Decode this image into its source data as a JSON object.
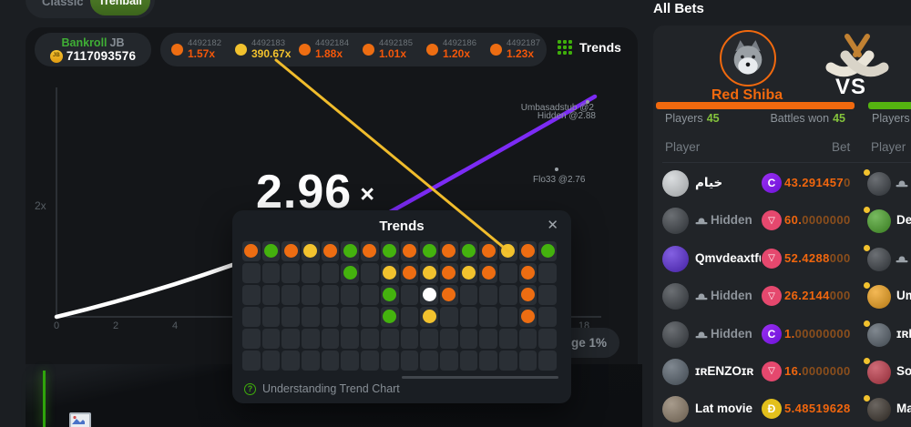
{
  "colors": {
    "page_bg": "#1b1e22",
    "panel_bg": "#141619",
    "card_bg": "#212428",
    "orange": "#ed6d12",
    "green": "#44b20e",
    "yellow": "#f2c22e",
    "white_dot": "#ffffff",
    "brand_orange": "#f1690e",
    "purple_line": "#7c2bf5",
    "value_orange": "#f4570a",
    "value_dim": "#8a4e1c",
    "green_text": "#84c33c",
    "trx_coin": "#e5486e",
    "ctc_coin": "#8a1fe8",
    "doge_coin": "#e3c01c"
  },
  "tabs": {
    "classic": "Classic",
    "trenball": "Trenball"
  },
  "bankroll": {
    "label": "Bankroll",
    "suffix": "JB",
    "coin": "JB",
    "amount": "7117093576"
  },
  "history": {
    "rounds": [
      {
        "id": "4492182",
        "value": "1.57x",
        "color": "orange"
      },
      {
        "id": "4492183",
        "value": "390.67x",
        "color": "yellow"
      },
      {
        "id": "4492184",
        "value": "1.88x",
        "color": "orange"
      },
      {
        "id": "4492185",
        "value": "1.01x",
        "color": "orange"
      },
      {
        "id": "4492186",
        "value": "1.20x",
        "color": "orange"
      },
      {
        "id": "4492187",
        "value": "1.23x",
        "color": "orange"
      }
    ]
  },
  "trends_button": {
    "label": "Trends"
  },
  "chart": {
    "multiplier": "2.96",
    "times_sign": "×",
    "y_label": "2x",
    "x_ticks": [
      "0",
      "2",
      "4",
      "18"
    ],
    "markers": [
      {
        "text": "Umbasadstub @2"
      },
      {
        "text": "Hidden @2.88"
      },
      {
        "text": "Flo33 @2.76"
      }
    ],
    "edge_pill": "dge 1%"
  },
  "trends_modal": {
    "title": "Trends",
    "close": "✕",
    "help": "Understanding Trend Chart",
    "grid": {
      "cols": 16,
      "rows": 6,
      "legend": {
        "O": "orange",
        "G": "green",
        "Y": "yellow",
        "W": "white",
        "-": "empty"
      },
      "cells": [
        "OGOYOGOGOGOGOYOG",
        "-----G-YOYOYO-O-",
        "-------G-WO---O-",
        "-------G-Y----O-",
        "----------------",
        "----------------"
      ]
    }
  },
  "all_bets": {
    "title": "All Bets",
    "team_left": {
      "name": "Red Shiba",
      "players_label": "Players",
      "players": "45",
      "battles_label": "Battles won",
      "battles": "45"
    },
    "vs": "VS",
    "team_right": {
      "players_label": "Players"
    },
    "headers": {
      "player": "Player",
      "bet": "Bet",
      "player2": "Player"
    },
    "rows": [
      {
        "name": "خيام",
        "hidden": false,
        "avatar": "#cfd3d6",
        "coin": "ctc",
        "bright": "43.291457",
        "dimmed": "0"
      },
      {
        "name": "Hidden",
        "hidden": true,
        "avatar": "#3a3f45",
        "coin": "trx",
        "bright": "60.",
        "dimmed": "0000000"
      },
      {
        "name": "Qmvdeaxtful",
        "hidden": false,
        "avatar": "#5a2bd8",
        "coin": "trx",
        "bright": "52.4288",
        "dimmed": "000"
      },
      {
        "name": "Hidden",
        "hidden": true,
        "avatar": "#3a3f45",
        "coin": "trx",
        "bright": "26.2144",
        "dimmed": "000"
      },
      {
        "name": "Hidden",
        "hidden": true,
        "avatar": "#3a3f45",
        "coin": "ctc",
        "bright": "1.",
        "dimmed": "00000000"
      },
      {
        "name": "ɪʀENZOɪʀ",
        "hidden": false,
        "avatar": "#55606b",
        "coin": "trx",
        "bright": "16.",
        "dimmed": "0000000"
      },
      {
        "name": "Lat movie",
        "hidden": false,
        "avatar": "#8a7a66",
        "coin": "doge",
        "bright": "5.48519628",
        "dimmed": ""
      }
    ],
    "right_rows": [
      {
        "name": "H",
        "hidden": true,
        "avatar": "#3a3f45"
      },
      {
        "name": "Dev",
        "hidden": false,
        "avatar": "#4aa32a"
      },
      {
        "name": "H",
        "hidden": true,
        "avatar": "#3a3f45"
      },
      {
        "name": "Um",
        "hidden": false,
        "avatar": "#f0a11c"
      },
      {
        "name": "ɪʀEN",
        "hidden": false,
        "avatar": "#56606a"
      },
      {
        "name": "Soh",
        "hidden": false,
        "avatar": "#c03a4a"
      },
      {
        "name": "Mad",
        "hidden": false,
        "avatar": "#3a332c"
      }
    ],
    "coin_glyphs": {
      "ctc": "C",
      "trx": "▽",
      "doge": "Ð"
    }
  }
}
